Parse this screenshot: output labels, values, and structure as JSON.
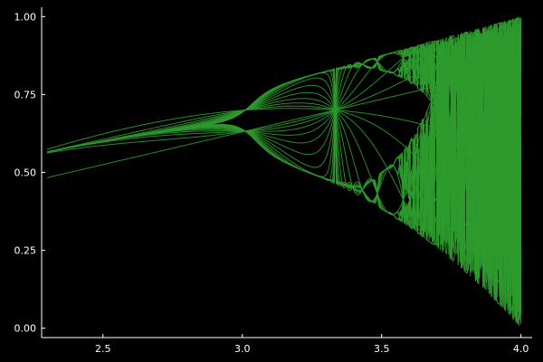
{
  "chart_data": {
    "type": "line",
    "title": "",
    "xlabel": "",
    "ylabel": "",
    "xlim": [
      2.28,
      4.04
    ],
    "ylim": [
      -0.03,
      1.03
    ],
    "grid": false,
    "legend": "none",
    "series_color": "#2e9a2e",
    "background": "#000000",
    "axis_color": "#ffffff",
    "x_ticks": [
      {
        "value": 2.5,
        "label": "2.5"
      },
      {
        "value": 3.0,
        "label": "3.0"
      },
      {
        "value": 3.5,
        "label": "3.5"
      },
      {
        "value": 4.0,
        "label": "4.0"
      }
    ],
    "y_ticks": [
      {
        "value": 0.0,
        "label": "0.00"
      },
      {
        "value": 0.25,
        "label": "0.25"
      },
      {
        "value": 0.5,
        "label": "0.50"
      },
      {
        "value": 0.75,
        "label": "0.75"
      },
      {
        "value": 1.0,
        "label": "1.00"
      }
    ],
    "r_range": [
      2.3,
      4.0
    ],
    "r_samples": 460,
    "x0": 0.7,
    "iterations": 30
  }
}
